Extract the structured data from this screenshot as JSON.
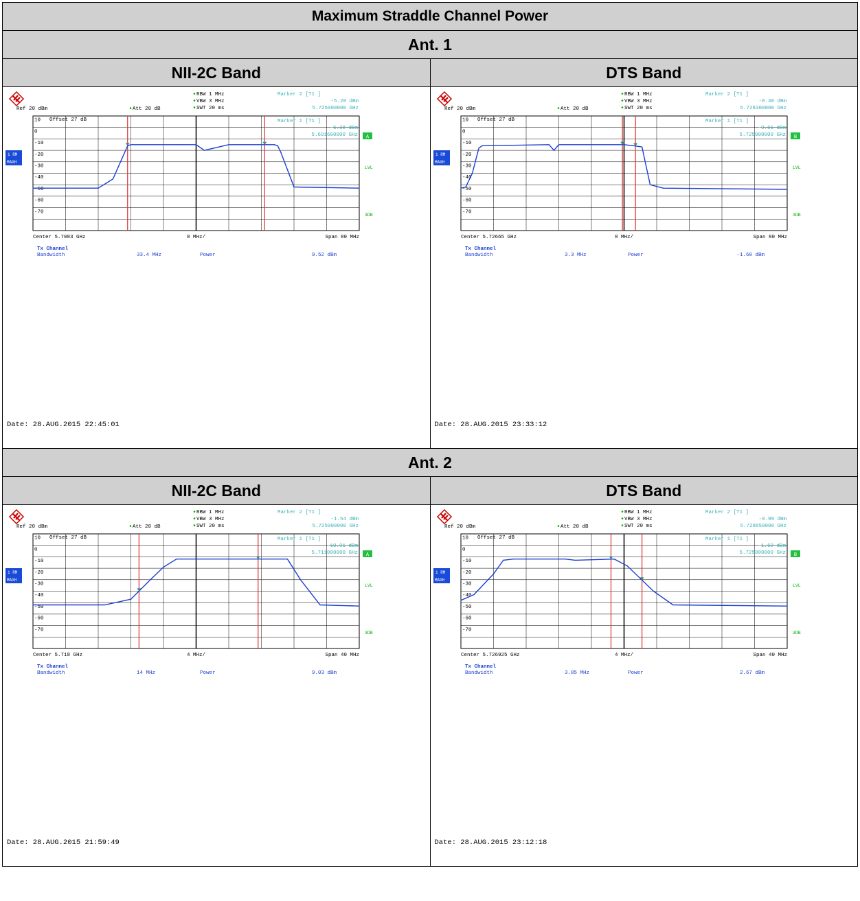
{
  "title": "Maximum Straddle Channel Power",
  "sections": [
    {
      "label": "Ant. 1",
      "bands": [
        "NII-2C Band",
        "DTS Band"
      ]
    },
    {
      "label": "Ant. 2",
      "bands": [
        "NII-2C Band",
        "DTS Band"
      ]
    }
  ],
  "common": {
    "rbw": "RBW 1 MHz",
    "vbw": "VBW 3 MHz",
    "swt": "SWT 20 ms",
    "ref": "Ref  20 dBm",
    "att": "Att  20 dB",
    "offset": "Offset  27 dB",
    "marker2": "Marker 2 [T1 ]",
    "marker1": "Marker 1 [T1 ]",
    "rm_label": "1 RM",
    "maxh_label": "MAXH",
    "lvl": "LVL",
    "tdb": "3DB",
    "tx_channel": "Tx Channel",
    "bandwidth_label": "Bandwidth",
    "power_label": "Power",
    "ylabels": [
      "10",
      "0",
      "-10",
      "-20",
      "-30",
      "-40",
      "-50",
      "-60",
      "-70"
    ]
  },
  "chart_data": [
    {
      "type": "line",
      "panel": "Ant. 1 / NII-2C Band",
      "center": "Center 5.7083 GHz",
      "per_div": "8 MHz/",
      "span": "Span 80 MHz",
      "marker2_level": "-5.20 dBm",
      "marker2_freq": "5.725000000 GHz",
      "marker1_level": "-6.38 dBm",
      "marker1_freq": "5.691600000 GHz",
      "trace_label": "A",
      "bandwidth": "33.4 MHz",
      "power": "9.52 dBm",
      "date": "Date: 28.AUG.2015  22:45:01",
      "ylim": [
        -80,
        20
      ],
      "xlim": [
        0,
        10
      ],
      "x": [
        0,
        2.0,
        2.45,
        2.9,
        3.0,
        4.6,
        5.0,
        5.25,
        6.0,
        7.4,
        7.5,
        7.6,
        8.0,
        10
      ],
      "y": [
        -43,
        -43,
        -35,
        -6,
        -5,
        -5,
        -5,
        -10,
        -5,
        -5,
        -6,
        -12,
        -42,
        -43
      ],
      "lines": [
        2.9,
        7.1
      ]
    },
    {
      "type": "line",
      "panel": "Ant. 1 / DTS Band",
      "center": "Center 5.72665 GHz",
      "per_div": "8 MHz/",
      "span": "Span 80 MHz",
      "marker2_level": "-8.48 dBm",
      "marker2_freq": "5.728300000 GHz",
      "marker1_level": "-9.61 dBm",
      "marker1_freq": "5.725000000 GHz",
      "trace_label": "B",
      "bandwidth": "3.3 MHz",
      "power": "-1.60 dBm",
      "date": "Date: 28.AUG.2015  23:33:12",
      "ylim": [
        -80,
        20
      ],
      "xlim": [
        0,
        10
      ],
      "x": [
        0,
        0.15,
        0.35,
        0.55,
        0.65,
        2.7,
        2.85,
        3.0,
        5.0,
        5.3,
        5.55,
        5.8,
        6.2,
        10
      ],
      "y": [
        -43,
        -42,
        -30,
        -8,
        -6,
        -5,
        -10,
        -5,
        -5,
        -6,
        -7,
        -40,
        -43,
        -44
      ],
      "lines": [
        4.95,
        5.35
      ]
    },
    {
      "type": "line",
      "panel": "Ant. 2 / NII-2C Band",
      "center": "Center 5.718 GHz",
      "per_div": "4 MHz/",
      "span": "Span 40 MHz",
      "marker2_level": "-1.54 dBm",
      "marker2_freq": "5.725000000 GHz",
      "marker1_level": "-10.91 dBm",
      "marker1_freq": "5.711000000 GHz",
      "trace_label": "A",
      "bandwidth": "14 MHz",
      "power": "9.03 dBm",
      "date": "Date: 28.AUG.2015  21:59:49",
      "ylim": [
        -80,
        20
      ],
      "xlim": [
        0,
        10
      ],
      "x": [
        0,
        2.2,
        3.0,
        3.6,
        4.0,
        4.4,
        6.0,
        7.0,
        7.8,
        8.2,
        8.8,
        10
      ],
      "y": [
        -42,
        -42,
        -37,
        -20,
        -9,
        -2,
        -2,
        -2,
        -2,
        -20,
        -42,
        -43
      ],
      "lines": [
        3.25,
        6.9
      ]
    },
    {
      "type": "line",
      "panel": "Ant. 2 / DTS Band",
      "center": "Center 5.726925 GHz",
      "per_div": "4 MHz/",
      "span": "Span 40 MHz",
      "marker2_level": "-9.99 dBm",
      "marker2_freq": "5.728850000 GHz",
      "marker1_level": "-1.60 dBm",
      "marker1_freq": "5.725000000 GHz",
      "trace_label": "B",
      "bandwidth": "3.85 MHz",
      "power": "2.67 dBm",
      "date": "Date: 28.AUG.2015  23:12:18",
      "ylim": [
        -80,
        20
      ],
      "xlim": [
        0,
        10
      ],
      "x": [
        0,
        0.4,
        1.0,
        1.3,
        1.6,
        3.2,
        3.5,
        4.7,
        5.1,
        5.9,
        6.5,
        10
      ],
      "y": [
        -38,
        -33,
        -15,
        -3,
        -2,
        -2,
        -3,
        -2,
        -8,
        -30,
        -42,
        -43
      ],
      "lines": [
        4.6,
        5.55
      ]
    }
  ]
}
